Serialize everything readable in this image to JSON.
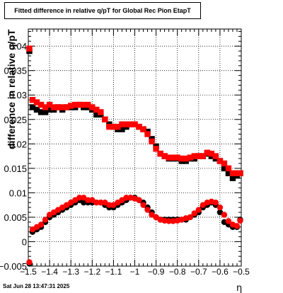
{
  "chart_data": {
    "type": "scatter",
    "title": "Fitted difference in relative q/pT for Global Rec Pion EtapT",
    "xlabel": "η",
    "ylabel": "difference in relative q/pT",
    "xlim": [
      -1.5,
      -0.5
    ],
    "ylim": [
      -0.005,
      0.0435
    ],
    "grid": true,
    "x_ticks": [
      -1.5,
      -1.4,
      -1.3,
      -1.2,
      -1.1,
      -1,
      -0.9,
      -0.8,
      -0.7,
      -0.6,
      -0.5
    ],
    "x_tick_labels": [
      "−1.5",
      "−1.4",
      "−1.3",
      "−1.2",
      "−1.1",
      "−1",
      "−0.9",
      "−0.8",
      "−0.7",
      "−0.6",
      "−0.5"
    ],
    "y_ticks": [
      -0.005,
      0,
      0.005,
      0.01,
      0.015,
      0.02,
      0.025,
      0.03,
      0.035,
      0.04
    ],
    "y_tick_labels": [
      "−0.005",
      "0",
      "0.005",
      "0.01",
      "0.015",
      "0.02",
      "0.025",
      "0.03",
      "0.035",
      "0.04"
    ],
    "series": [
      {
        "marker": "circle",
        "color": "#000000",
        "x": [
          -1.495,
          -1.48,
          -1.46,
          -1.44,
          -1.42,
          -1.4,
          -1.38,
          -1.36,
          -1.34,
          -1.32,
          -1.3,
          -1.28,
          -1.26,
          -1.24,
          -1.22,
          -1.2,
          -1.18,
          -1.16,
          -1.14,
          -1.12,
          -1.1,
          -1.08,
          -1.06,
          -1.04,
          -1.02,
          -1.0,
          -0.98,
          -0.96,
          -0.94,
          -0.92,
          -0.9,
          -0.88,
          -0.86,
          -0.84,
          -0.82,
          -0.8,
          -0.78,
          -0.76,
          -0.74,
          -0.72,
          -0.7,
          -0.68,
          -0.66,
          -0.64,
          -0.62,
          -0.6,
          -0.58,
          -0.56,
          -0.54,
          -0.52,
          -0.505
        ],
        "y": [
          -0.0045,
          0.002,
          0.0025,
          0.003,
          0.004,
          0.005,
          0.0055,
          0.006,
          0.0065,
          0.007,
          0.0075,
          0.008,
          0.0085,
          0.008,
          0.008,
          0.008,
          0.008,
          0.008,
          0.0075,
          0.007,
          0.007,
          0.0075,
          0.008,
          0.0085,
          0.009,
          0.009,
          0.0085,
          0.008,
          0.007,
          0.006,
          0.005,
          0.0045,
          0.0045,
          0.0045,
          0.0045,
          0.0045,
          0.0045,
          0.0045,
          0.005,
          0.0055,
          0.006,
          0.007,
          0.0075,
          0.008,
          0.0075,
          0.006,
          0.004,
          0.0035,
          0.003,
          0.003,
          0.0045
        ]
      },
      {
        "marker": "square",
        "color": "#000000",
        "x": [
          -1.495,
          -1.48,
          -1.46,
          -1.44,
          -1.42,
          -1.4,
          -1.38,
          -1.36,
          -1.34,
          -1.32,
          -1.3,
          -1.28,
          -1.26,
          -1.24,
          -1.22,
          -1.2,
          -1.18,
          -1.16,
          -1.14,
          -1.12,
          -1.1,
          -1.08,
          -1.06,
          -1.04,
          -1.02,
          -1.0,
          -0.98,
          -0.96,
          -0.94,
          -0.92,
          -0.9,
          -0.88,
          -0.86,
          -0.84,
          -0.82,
          -0.8,
          -0.78,
          -0.76,
          -0.74,
          -0.72,
          -0.7,
          -0.68,
          -0.66,
          -0.64,
          -0.62,
          -0.6,
          -0.58,
          -0.56,
          -0.54,
          -0.52,
          -0.505
        ],
        "y": [
          0.039,
          0.0275,
          0.027,
          0.0265,
          0.0265,
          0.027,
          0.027,
          0.0275,
          0.027,
          0.0275,
          0.0275,
          0.0275,
          0.028,
          0.0275,
          0.0275,
          0.027,
          0.026,
          0.026,
          0.025,
          0.024,
          0.0235,
          0.023,
          0.023,
          0.0235,
          0.024,
          0.024,
          0.0235,
          0.023,
          0.0225,
          0.021,
          0.0195,
          0.018,
          0.0175,
          0.017,
          0.017,
          0.017,
          0.0165,
          0.0165,
          0.017,
          0.017,
          0.0175,
          0.0175,
          0.018,
          0.0175,
          0.017,
          0.0165,
          0.015,
          0.014,
          0.013,
          0.0135,
          0.014
        ]
      },
      {
        "marker": "circle",
        "color": "#ff0000",
        "x": [
          -1.495,
          -1.48,
          -1.46,
          -1.44,
          -1.42,
          -1.4,
          -1.38,
          -1.36,
          -1.34,
          -1.32,
          -1.3,
          -1.28,
          -1.26,
          -1.24,
          -1.22,
          -1.2,
          -1.18,
          -1.16,
          -1.14,
          -1.12,
          -1.1,
          -1.08,
          -1.06,
          -1.04,
          -1.02,
          -1.0,
          -0.98,
          -0.96,
          -0.94,
          -0.92,
          -0.9,
          -0.88,
          -0.86,
          -0.84,
          -0.82,
          -0.8,
          -0.78,
          -0.76,
          -0.74,
          -0.72,
          -0.7,
          -0.68,
          -0.66,
          -0.64,
          -0.62,
          -0.6,
          -0.58,
          -0.56,
          -0.54,
          -0.52,
          -0.505
        ],
        "y": [
          -0.0042,
          0.0025,
          0.003,
          0.0035,
          0.0045,
          0.0055,
          0.006,
          0.0065,
          0.007,
          0.0075,
          0.008,
          0.0085,
          0.009,
          0.009,
          0.0085,
          0.0085,
          0.008,
          0.008,
          0.008,
          0.0075,
          0.0075,
          0.008,
          0.0085,
          0.009,
          0.009,
          0.0088,
          0.0085,
          0.0075,
          0.0065,
          0.0055,
          0.005,
          0.0045,
          0.0043,
          0.0042,
          0.0042,
          0.0043,
          0.0045,
          0.0048,
          0.005,
          0.0058,
          0.0065,
          0.0075,
          0.008,
          0.0082,
          0.008,
          0.007,
          0.0055,
          0.0042,
          0.0035,
          0.0032,
          0.0043
        ]
      },
      {
        "marker": "square",
        "color": "#ff0000",
        "x": [
          -1.495,
          -1.48,
          -1.46,
          -1.44,
          -1.42,
          -1.4,
          -1.38,
          -1.36,
          -1.34,
          -1.32,
          -1.3,
          -1.28,
          -1.26,
          -1.24,
          -1.22,
          -1.2,
          -1.18,
          -1.16,
          -1.14,
          -1.12,
          -1.1,
          -1.08,
          -1.06,
          -1.04,
          -1.02,
          -1.0,
          -0.98,
          -0.96,
          -0.94,
          -0.92,
          -0.9,
          -0.88,
          -0.86,
          -0.84,
          -0.82,
          -0.8,
          -0.78,
          -0.76,
          -0.74,
          -0.72,
          -0.7,
          -0.68,
          -0.66,
          -0.64,
          -0.62,
          -0.6,
          -0.58,
          -0.56,
          -0.54,
          -0.52,
          -0.505
        ],
        "y": [
          0.0395,
          0.029,
          0.0285,
          0.028,
          0.0275,
          0.028,
          0.0275,
          0.0275,
          0.0275,
          0.0275,
          0.0278,
          0.028,
          0.028,
          0.028,
          0.028,
          0.0275,
          0.027,
          0.0265,
          0.025,
          0.0235,
          0.0235,
          0.0235,
          0.024,
          0.024,
          0.024,
          0.024,
          0.0235,
          0.023,
          0.022,
          0.0205,
          0.019,
          0.018,
          0.0175,
          0.0172,
          0.0172,
          0.0172,
          0.017,
          0.017,
          0.0172,
          0.0175,
          0.0175,
          0.0175,
          0.0182,
          0.018,
          0.0175,
          0.0165,
          0.016,
          0.015,
          0.014,
          0.014,
          0.014
        ]
      }
    ]
  },
  "footer": {
    "timestamp": "Sat Jun 28 13:47:31 2025"
  }
}
